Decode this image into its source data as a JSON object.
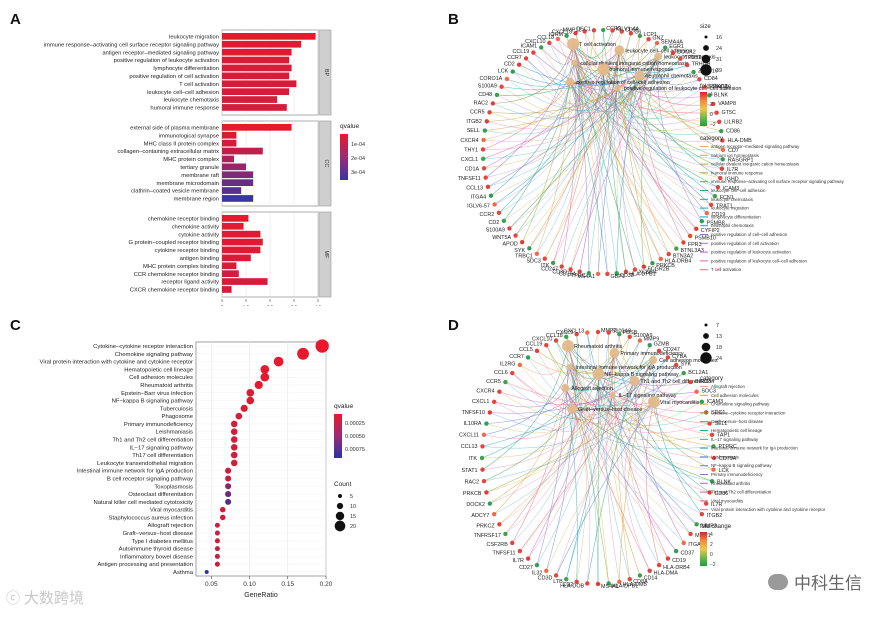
{
  "panels": {
    "a": {
      "label": "A"
    },
    "b": {
      "label": "B"
    },
    "c": {
      "label": "C"
    },
    "d": {
      "label": "D"
    }
  },
  "watermarks": {
    "left": "大数跨境",
    "right": "中科生信"
  },
  "chart_data": [
    {
      "panel": "A",
      "type": "bar",
      "title": "",
      "xlabel": "",
      "ylabel": "",
      "xlim": [
        0,
        40
      ],
      "xticks": [
        0,
        10,
        20,
        30,
        40
      ],
      "grid": true,
      "legend": {
        "title": "qvalue",
        "ticks": [
          "1e-04",
          "2e-04",
          "3e-04"
        ],
        "low_color": "#e8192c",
        "high_color": "#3a34a8",
        "placement": "right"
      },
      "groups": [
        {
          "name": "BP",
          "bars": [
            {
              "label": "leukocyte migration",
              "value": 39,
              "q": 0.0
            },
            {
              "label": "immune response–activating cell surface receptor signaling pathway",
              "value": 33,
              "q": 2e-05
            },
            {
              "label": "antigen receptor–mediated signaling pathway",
              "value": 29,
              "q": 2e-05
            },
            {
              "label": "positive regulation of leukocyte activation",
              "value": 28,
              "q": 3e-05
            },
            {
              "label": "lymphocyte differentiation",
              "value": 29,
              "q": 3e-05
            },
            {
              "label": "positive regulation of cell activation",
              "value": 28,
              "q": 3e-05
            },
            {
              "label": "T cell activation",
              "value": 31,
              "q": 3e-05
            },
            {
              "label": "leukocyte cell–cell adhesion",
              "value": 28,
              "q": 4e-05
            },
            {
              "label": "leukocyte chemotaxis",
              "value": 23,
              "q": 4e-05
            },
            {
              "label": "humoral immune response",
              "value": 27,
              "q": 4e-05
            }
          ]
        },
        {
          "name": "CC",
          "bars": [
            {
              "label": "external side of plasma membrane",
              "value": 29,
              "q": 0.0
            },
            {
              "label": "immunological synapse",
              "value": 6,
              "q": 3e-05
            },
            {
              "label": "MHC class II protein complex",
              "value": 6,
              "q": 4e-05
            },
            {
              "label": "collagen–containing extracellular matrix",
              "value": 17,
              "q": 8e-05
            },
            {
              "label": "MHC protein complex",
              "value": 5,
              "q": 0.00012
            },
            {
              "label": "tertiary granule",
              "value": 10,
              "q": 0.00016
            },
            {
              "label": "membrane raft",
              "value": 13,
              "q": 0.0002
            },
            {
              "label": "membrane microdomain",
              "value": 13,
              "q": 0.00024
            },
            {
              "label": "clathrin–coated vesicle membrane",
              "value": 8,
              "q": 0.00028
            },
            {
              "label": "membrane region",
              "value": 13,
              "q": 0.00034
            }
          ]
        },
        {
          "name": "MF",
          "bars": [
            {
              "label": "chemokine receptor binding",
              "value": 11,
              "q": 1e-05
            },
            {
              "label": "chemokine activity",
              "value": 9,
              "q": 1e-05
            },
            {
              "label": "cytokine activity",
              "value": 16,
              "q": 2e-05
            },
            {
              "label": "G protein–coupled receptor binding",
              "value": 17,
              "q": 2e-05
            },
            {
              "label": "cytokine receptor binding",
              "value": 16,
              "q": 2e-05
            },
            {
              "label": "antigen binding",
              "value": 12,
              "q": 3e-05
            },
            {
              "label": "MHC protein complex binding",
              "value": 6,
              "q": 3e-05
            },
            {
              "label": "CCR chemokine receptor binding",
              "value": 7,
              "q": 4e-05
            },
            {
              "label": "receptor ligand activity",
              "value": 19,
              "q": 4e-05
            },
            {
              "label": "CXCR chemokine receptor binding",
              "value": 4,
              "q": 4e-05
            }
          ]
        }
      ]
    },
    {
      "panel": "B",
      "type": "cnetplot",
      "size_legend": {
        "title": "size",
        "values": [
          16,
          24,
          31,
          39
        ]
      },
      "fold_legend": {
        "title": "fold change",
        "ticks": [
          "4",
          "2",
          "0",
          "−2"
        ]
      },
      "category_legend": {
        "title": "category",
        "items": [
          {
            "label": "antigen receptor–mediated signaling pathway",
            "color": "#f4a582"
          },
          {
            "label": "calcium ion homeostasis",
            "color": "#e6a23c"
          },
          {
            "label": "cellular divalent inorganic cation homeostasis",
            "color": "#c9a227"
          },
          {
            "label": "humoral immune response",
            "color": "#a3a62b"
          },
          {
            "label": "immune response–activating cell surface receptor signaling pathway",
            "color": "#6ba43a"
          },
          {
            "label": "leukocyte cell–cell adhesion",
            "color": "#2ea84f"
          },
          {
            "label": "leukocyte chemotaxis",
            "color": "#21a98f"
          },
          {
            "label": "leukocyte migration",
            "color": "#1fa7b3"
          },
          {
            "label": "lymphocyte differentiation",
            "color": "#1b9fd1"
          },
          {
            "label": "neutrophil chemotaxis",
            "color": "#3b8bdc"
          },
          {
            "label": "positive regulation of cell–cell adhesion",
            "color": "#7a79d6"
          },
          {
            "label": "positive regulation of cell activation",
            "color": "#a56cd2"
          },
          {
            "label": "positive regulation of leukocyte activation",
            "color": "#c962c0"
          },
          {
            "label": "positive regulation of leukocyte cell–cell adhesion",
            "color": "#e0609c"
          },
          {
            "label": "T cell activation",
            "color": "#ef6a78"
          }
        ]
      },
      "hub_labels": [
        "T cell activation",
        "leukocyte cell–cell adhesion",
        "leukocyte chemotaxis",
        "cellular divalent inorganic cation homeostasis",
        "humoral immune response",
        "neutrophil chemotaxis",
        "positive regulation of cell–cell adhesion",
        "positive regulation of leukocyte cell–cell adhesion"
      ],
      "genes": [
        "CD52",
        "C6",
        "LCP1",
        "GNZ",
        "SEMA4A",
        "EGR1",
        "DOCK2",
        "TPD52",
        "TRHDH",
        "ZBTB16",
        "CD84",
        "PRKCZ",
        "BLNK",
        "VAMP8",
        "GT5C",
        "LILRB2",
        "CD86",
        "HLA-DMB",
        "CD7",
        "RASGRP1",
        "IL7R",
        "IGHD",
        "ICAM3",
        "FCN1",
        "TRAT1",
        "CD19",
        "PSMB8",
        "CYFIP2",
        "PSMB10",
        "FPR3",
        "BTNL3A3",
        "BTN3A2",
        "HLA-DRB4",
        "PRKCB",
        "FCGR2B",
        "XCNN4",
        "HLA-DPB1",
        "CD38",
        "GBP1",
        "MS4A1",
        "PTPRC",
        "CD79A",
        "CD3D",
        "CD247",
        "ITK",
        "SDC3",
        "TRBC1",
        "SYK",
        "APOD",
        "WNT5A",
        "S100A9",
        "CD2",
        "CCR2",
        "IGLV6-57",
        "ITGA4",
        "CCL13",
        "TNFSF11",
        "CD1A",
        "CXCL1",
        "THY1",
        "CXCR4",
        "SELL",
        "ITGB2",
        "CCR5",
        "RAC2",
        "CD48",
        "S100A9",
        "CORO1A",
        "LCK",
        "CD2",
        "CCR7",
        "CCL19",
        "ICAM1",
        "CXCL10",
        "CCL18",
        "IGHM",
        "CXCL13",
        "MMP12",
        "DSC1",
        "CCR9",
        "IGLV1-44"
      ]
    },
    {
      "panel": "C",
      "type": "scatter",
      "title": "",
      "xlabel": "GeneRatio",
      "ylabel": "",
      "xlim": [
        0.03,
        0.2
      ],
      "xticks": [
        0.05,
        0.1,
        0.15,
        0.2
      ],
      "grid": true,
      "color_legend": {
        "title": "qvalue",
        "ticks": [
          "0.00025",
          "0.00050",
          "0.00075"
        ],
        "low_color": "#e8192c",
        "high_color": "#2d32a8",
        "placement": "right"
      },
      "size_legend": {
        "title": "Count",
        "values": [
          5,
          10,
          15,
          20
        ]
      },
      "points": [
        {
          "label": "Cytokine–cytokine receptor interaction",
          "x": 0.195,
          "count": 22,
          "q": 0.0
        },
        {
          "label": "Chemokine signaling pathway",
          "x": 0.17,
          "count": 19,
          "q": 0.0
        },
        {
          "label": "Viral protein interaction with cytokine and cytokine receptor",
          "x": 0.138,
          "count": 15,
          "q": 1e-05
        },
        {
          "label": "Hematopoietic cell lineage",
          "x": 0.12,
          "count": 13,
          "q": 1e-05
        },
        {
          "label": "Cell adhesion molecules",
          "x": 0.12,
          "count": 13,
          "q": 2e-05
        },
        {
          "label": "Rheumatoid arthritis",
          "x": 0.112,
          "count": 12,
          "q": 2e-05
        },
        {
          "label": "Epstein−Barr virus infection",
          "x": 0.101,
          "count": 11,
          "q": 4e-05
        },
        {
          "label": "NF−kappa B signaling pathway",
          "x": 0.101,
          "count": 11,
          "q": 4e-05
        },
        {
          "label": "Tuberculosis",
          "x": 0.093,
          "count": 10,
          "q": 5e-05
        },
        {
          "label": "Phagosome",
          "x": 0.086,
          "count": 9,
          "q": 6e-05
        },
        {
          "label": "Primary immunodeficiency",
          "x": 0.08,
          "count": 9,
          "q": 6e-05
        },
        {
          "label": "Leishmaniasis",
          "x": 0.08,
          "count": 9,
          "q": 6e-05
        },
        {
          "label": "Th1 and Th2 cell differentiation",
          "x": 0.08,
          "count": 9,
          "q": 7e-05
        },
        {
          "label": "IL−17 signaling pathway",
          "x": 0.08,
          "count": 9,
          "q": 7e-05
        },
        {
          "label": "Th17 cell differentiation",
          "x": 0.08,
          "count": 9,
          "q": 8e-05
        },
        {
          "label": "Leukocyte transendothelial migration",
          "x": 0.08,
          "count": 9,
          "q": 8e-05
        },
        {
          "label": "Intestinal immune network for IgA production",
          "x": 0.072,
          "count": 8,
          "q": 0.0001
        },
        {
          "label": "B cell receptor signaling pathway",
          "x": 0.072,
          "count": 8,
          "q": 0.00014
        },
        {
          "label": "Toxoplasmosis",
          "x": 0.072,
          "count": 8,
          "q": 0.0004
        },
        {
          "label": "Osteoclast differentiation",
          "x": 0.072,
          "count": 8,
          "q": 0.0005
        },
        {
          "label": "Natural killer cell mediated cytotoxicity",
          "x": 0.072,
          "count": 8,
          "q": 0.00065
        },
        {
          "label": "Viral myocarditis",
          "x": 0.065,
          "count": 7,
          "q": 7e-05
        },
        {
          "label": "Staphylococcus aureus infection",
          "x": 0.065,
          "count": 7,
          "q": 8e-05
        },
        {
          "label": "Allograft rejection",
          "x": 0.058,
          "count": 6,
          "q": 0.0001
        },
        {
          "label": "Graft−versus−host disease",
          "x": 0.058,
          "count": 6,
          "q": 0.0001
        },
        {
          "label": "Type I diabetes mellitus",
          "x": 0.058,
          "count": 6,
          "q": 0.0001
        },
        {
          "label": "Autoimmune thyroid disease",
          "x": 0.058,
          "count": 6,
          "q": 0.00012
        },
        {
          "label": "Inflammatory bowel disease",
          "x": 0.058,
          "count": 6,
          "q": 0.00012
        },
        {
          "label": "Antigen processing and presentation",
          "x": 0.058,
          "count": 6,
          "q": 0.00015
        },
        {
          "label": "Asthma",
          "x": 0.044,
          "count": 4,
          "q": 0.0008
        }
      ]
    },
    {
      "panel": "D",
      "type": "cnetplot",
      "size_legend": {
        "values": [
          7,
          13,
          18,
          24
        ]
      },
      "category_legend": {
        "title": "category",
        "items": [
          {
            "label": "Allograft rejection",
            "color": "#f4a582"
          },
          {
            "label": "Cell adhesion molecules",
            "color": "#e6a23c"
          },
          {
            "label": "Chemokine signaling pathway",
            "color": "#c9a227"
          },
          {
            "label": "Cytokine–cytokine receptor interaction",
            "color": "#8fa72f"
          },
          {
            "label": "Graft–versus–host disease",
            "color": "#3fa84a"
          },
          {
            "label": "Hematopoietic cell lineage",
            "color": "#22a886"
          },
          {
            "label": "IL–17 signaling pathway",
            "color": "#1fa7b3"
          },
          {
            "label": "Intestinal immune network for IgA production",
            "color": "#1b9fd1"
          },
          {
            "label": "Leishmaniasis",
            "color": "#3b8bdc"
          },
          {
            "label": "NF–kappa B signaling pathway",
            "color": "#6f7ed8"
          },
          {
            "label": "Primary immunodeficiency",
            "color": "#9a6fd4"
          },
          {
            "label": "Rheumatoid arthritis",
            "color": "#c062c4"
          },
          {
            "label": "Th1 and Th2 cell differentiation",
            "color": "#dc5fa6"
          },
          {
            "label": "Viral myocarditis",
            "color": "#ec6584"
          },
          {
            "label": "Viral protein interaction with cytokine and cytokine receptor",
            "color": "#f07070"
          }
        ]
      },
      "fold_legend": {
        "title": "fold change",
        "ticks": [
          "4",
          "2",
          "0",
          "−2"
        ]
      },
      "hub_labels": [
        "Rheumatoid arthritis",
        "Primary immunodeficiency",
        "Cell adhesion molecules",
        "Intestinal immune network for IgA production",
        "NF–kappa B signaling pathway",
        "Th1 and Th2 cell differentiation",
        "Allograft rejection",
        "IL–17 signaling pathway",
        "Viral myocarditis",
        "Graft–versus–host disease"
      ],
      "genes": [
        "MMP3",
        "S100A8",
        "FOSB",
        "S100A9",
        "MMP9",
        "GZMB",
        "CD247",
        "CYBA",
        "SYK",
        "BCL2A1",
        "BIRC3",
        "SOC3",
        "ICAM3",
        "SDC1",
        "SELL",
        "TAP1",
        "PTPRC",
        "CD79A",
        "LCK",
        "BLNK",
        "CD86",
        "IL7R",
        "ITGB2",
        "MMP3",
        "MMP1",
        "ITGA4",
        "CD37",
        "CD19",
        "HLA-DRB4",
        "HLA-DMA",
        "CD14",
        "CD8A",
        "HLA-DMB",
        "HLA-DPB1",
        "MS4A1",
        "HLA-DOB",
        "CD2",
        "LTB",
        "CD3D",
        "IL32",
        "CD27",
        "IL7R",
        "TNFSF11",
        "CSF2RB",
        "TNFRSF17",
        "PRKCZ",
        "ADCY7",
        "DOCK2",
        "PRKCB",
        "RAC2",
        "STAT1",
        "ITK",
        "CCL13",
        "CXCL11",
        "IL10RA",
        "TNFSF10",
        "CXCL1",
        "CXCR4",
        "CCR5",
        "CCL6",
        "IL2RG",
        "CCR7",
        "CCL5",
        "CCL19",
        "CXCL10",
        "CCL18",
        "CXCL9",
        "CXCL13"
      ]
    }
  ]
}
